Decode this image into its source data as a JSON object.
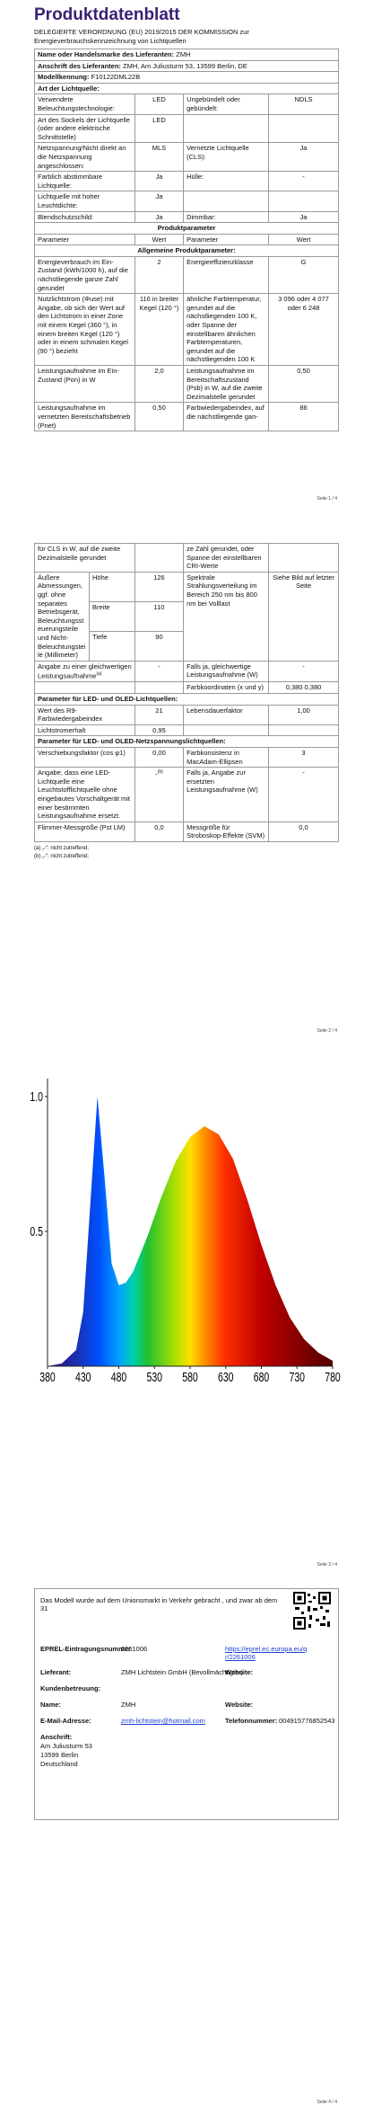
{
  "page1": {
    "title": "Produktdatenblatt",
    "regulation": "DELEGIERTE VERORDNUNG (EU) 2019/2015 DER KOMMISSION zur Energieverbrauchskennzeichnung von Lichtquellen",
    "supplier_rows": [
      {
        "label": "Name oder Handelsmarke des Lieferanten:",
        "value": "ZMH"
      },
      {
        "label": "Anschrift des Lieferanten:",
        "value": "ZMH, Am Juliusturm 53, 13599 Berlin, DE"
      },
      {
        "label": "Modellkennung:",
        "value": "F10122DML22B"
      },
      {
        "label": "Art der Lichtquelle:"
      }
    ],
    "rows": [
      {
        "cells": [
          "Verwendete Beleuchtungstechnologie:",
          "LED",
          "Ungebündelt oder gebündelt:",
          "NDLS"
        ]
      },
      {
        "cells": [
          "Art des Sockels der Lichtquelle (oder andere elektrische Schnittstelle)",
          "LED",
          null,
          null
        ]
      },
      {
        "cells": [
          "Netzspannung/Nicht direkt an die Netzspannung angeschlossen:",
          "MLS",
          "Vernetzte Lichtquelle (CLS):",
          "Ja"
        ]
      },
      {
        "cells": [
          "Farblich abstimmbare Lichtquelle:",
          "Ja",
          "Hülle:",
          "-"
        ]
      },
      {
        "cells": [
          "Lichtquelle mit hoher Leuchtdichte:",
          "Ja",
          null,
          null
        ]
      },
      {
        "cells": [
          "Blendschutzschild:",
          "Ja",
          "Dimmbar:",
          "Ja"
        ]
      },
      {
        "heading": "Produktparameter"
      },
      {
        "cells": [
          "Parameter",
          "Wert",
          "Parameter",
          "Wert"
        ]
      },
      {
        "heading": "Allgemeine Produktparameter:"
      },
      {
        "cells": [
          "Energieverbrauch im Ein-Zustand (kWh/1000 h), auf die nächstliegende ganze Zahl gerundet",
          "2",
          "Energieeffizienzklasse",
          "G"
        ]
      },
      {
        "cells": [
          "Nutzlichtstrom (Φuse) mit Angabe, ob sich der Wert auf den Lichtstrom in einer Zone mit einem Kegel (360 °), in einem breiten Kegel (120 °) oder in einem schmalen Kegel (90 °) bezieht",
          "116 in breiter Kegel (120 °)",
          "ähnliche Farbtemperatur, gerundet auf die nächstliegenden 100 K, oder Spanne der einstellbaren ähnlichen Farbtemperaturen, gerundet auf die nächstliegenden 100 K",
          "3 096 oder 4 077 oder 6 248"
        ]
      },
      {
        "cells": [
          "Leistungsaufnahme im Ein-Zustand (Pon) in W",
          "2,0",
          "Leistungsaufnahme im Bereitschaftszustand (Psb) in W, auf die zweite Dezimalstelle gerundet",
          "0,50"
        ]
      },
      {
        "cells": [
          "Leistungsaufnahme im vernetzten Bereitschaftsbetrieb (Pnet)",
          "0,50",
          "Farbwiedergabeindex, auf die nächstliegende gan-",
          "86"
        ]
      }
    ],
    "footer": "Seite 1 / 4"
  },
  "page2": {
    "rows": [
      {
        "cells": [
          "für CLS in W, auf die zweite Dezimalstelle gerundet",
          null,
          "ze Zahl gerundet, oder Spanne der einstellbaren CRI-Werte",
          null
        ]
      },
      {
        "label": "Äußere Abmessungen, ggf. ohne separates Betriebsgerät, Beleuchtungssteuerungsteile und Nicht-Beleuchtungsteile (Millimeter)",
        "dimensions": [
          {
            "name": "Höhe",
            "value": "126"
          },
          {
            "name": "Breite",
            "value": "110"
          },
          {
            "name": "Tiefe",
            "value": "90"
          }
        ],
        "right": [
          "Spektrale Strahlungsverteilung im Bereich 250 nm bis 800 nm bei Volllast",
          "Siehe Bild auf letzter Seite"
        ]
      },
      {
        "cells": [
          {
            "text": "Angabe zu einer gleichwertigen Leistungsaufnahme",
            "sup": "(a)"
          },
          "-",
          "Falls ja, gleichwertige Leistungsaufnahme (W)",
          "-"
        ]
      },
      {
        "cells": [
          null,
          null,
          "Farbkoordinaten (x und y)",
          "0,380 0,380"
        ]
      },
      {
        "group": "Parameter für LED- und OLED-Lichtquellen:"
      },
      {
        "cells": [
          "Wert des R9-Farbwiedergabeindex",
          "21",
          "Lebensdauerfaktor",
          "1,00"
        ]
      },
      {
        "cells": [
          "Lichtstromerhalt",
          "0,95",
          null,
          null
        ]
      },
      {
        "group": "Parameter für LED- und OLED-Netzspannungslichtquellen:"
      },
      {
        "cells": [
          "Verschiebungsfaktor (cos φ1)",
          "0,00",
          "Farbkonsistenz in MacAdam-Ellipsen",
          "3"
        ]
      },
      {
        "cells": [
          "Angabe, dass eine LED-Lichtquelle eine Leuchtstofflichtquelle ohne eingebautes Vorschaltgerät mit einer bestimmten Leistungsaufnahme ersetzt.",
          {
            "text": "-",
            "sup": "(b)"
          },
          "Falls ja, Angabe zur ersetzten Leistungsaufnahme (W)",
          "-"
        ]
      },
      {
        "cells": [
          "Flimmer-Messgröße (Pst LM)",
          "0,0",
          "Messgröße für Stroboskop-Effekte (SVM)",
          "0,0"
        ]
      }
    ],
    "footnotes": [
      "(a) „-“: nicht zutreffend;",
      "(b) „-“: nicht zutreffend;"
    ],
    "footer": "Seite 2 / 4"
  },
  "page3": {
    "chart_data": {
      "type": "area",
      "x": [
        380,
        400,
        420,
        430,
        440,
        450,
        460,
        470,
        480,
        490,
        500,
        520,
        540,
        560,
        580,
        600,
        620,
        640,
        660,
        680,
        700,
        720,
        740,
        760,
        780
      ],
      "values": [
        0,
        0.01,
        0.06,
        0.2,
        0.6,
        1.0,
        0.7,
        0.38,
        0.3,
        0.31,
        0.35,
        0.48,
        0.63,
        0.76,
        0.85,
        0.89,
        0.86,
        0.77,
        0.62,
        0.45,
        0.3,
        0.18,
        0.1,
        0.05,
        0.02
      ],
      "xlim": [
        380,
        780
      ],
      "xticks": [
        380,
        430,
        480,
        530,
        580,
        630,
        680,
        730,
        780
      ],
      "ylim": [
        0,
        1.05
      ],
      "yticks": [
        {
          "value": 0.5,
          "label": "0.5"
        },
        {
          "value": 1,
          "label": "1.0"
        }
      ]
    },
    "footer": "Seite 3 / 4"
  },
  "page4": {
    "intro": "Das Modell wurde auf dem Unionsmarkt in Verkehr gebracht , und zwar ab dem 31",
    "rows": [
      {
        "label": "EPREL-Eintragungsnummer",
        "value": "2261006",
        "link": "https://eprel.ec.europa.eu/qr/2261006"
      },
      {
        "label": "Lieferant:",
        "value": "ZMH Lichtstein GmbH (Bevollmächtigter)",
        "right_label": "Website:"
      },
      {
        "label": "Kundenbetreuung:"
      },
      {
        "label": "Name:",
        "value": "ZMH",
        "right_label": "Website:"
      },
      {
        "label": "E-Mail-Adresse:",
        "email": "zmh-lichtstein@hotmail.com",
        "right_label": "Telefonnummer:",
        "right_value": "004915776852543"
      },
      {
        "label": "Anschrift:",
        "lines": [
          "Am Juliusturm 53",
          "13599 Berlin",
          "Deutschland"
        ]
      }
    ],
    "footer": "Seite 4 / 4"
  }
}
